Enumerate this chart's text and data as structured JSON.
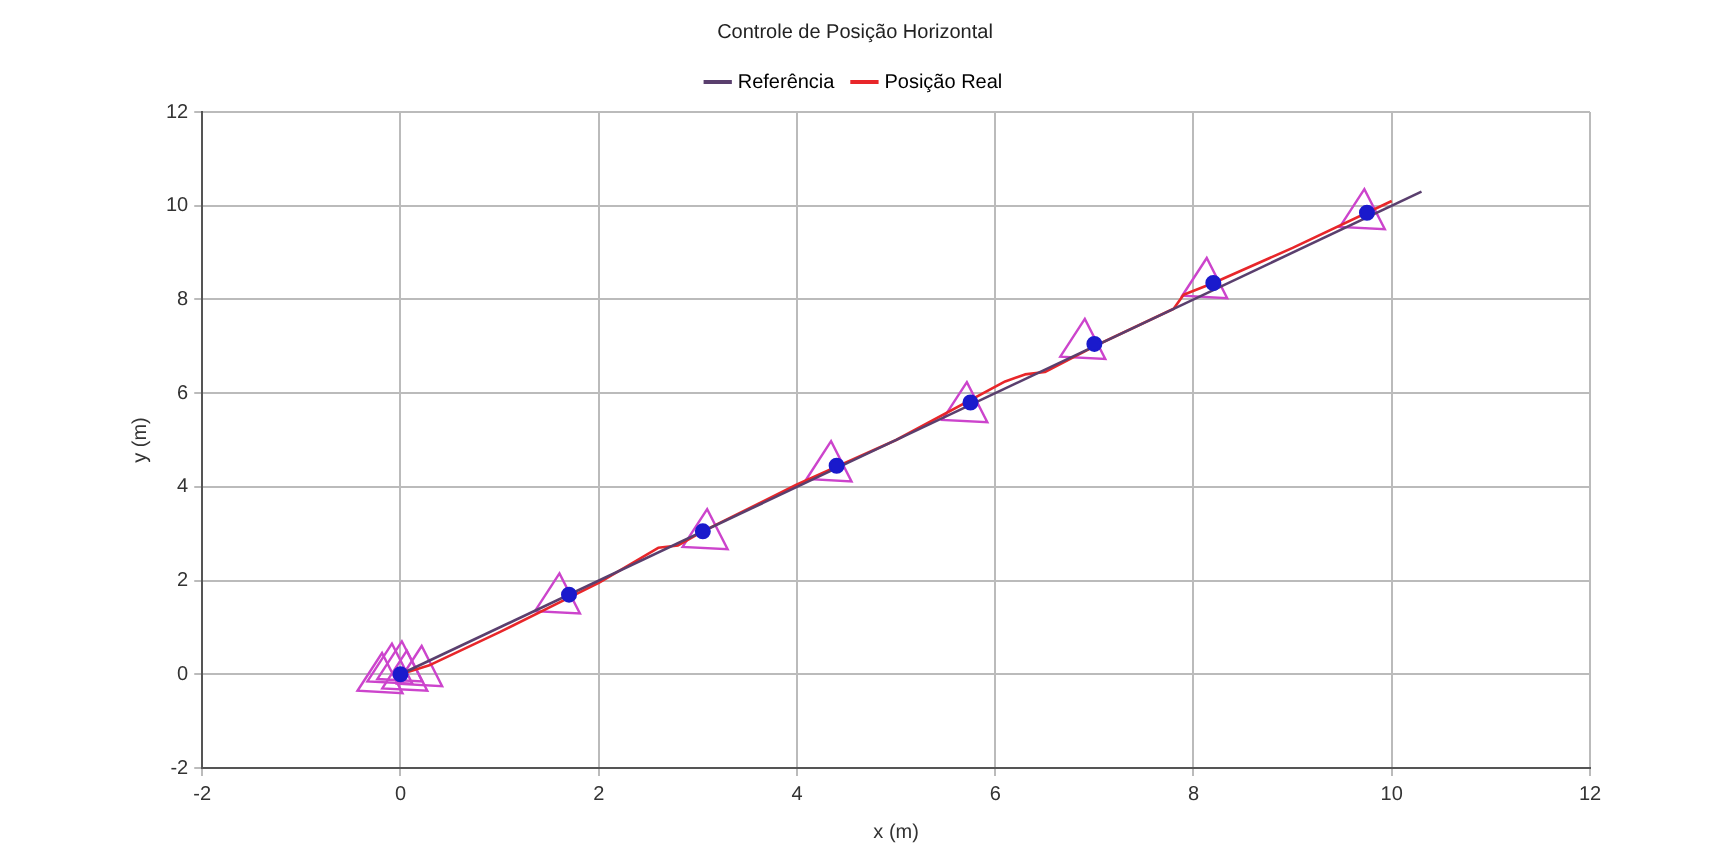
{
  "chart_data": {
    "type": "line",
    "title": "Controle de Posição Horizontal",
    "xlabel": "x (m)",
    "ylabel": "y (m)",
    "xlim": [
      -2,
      12
    ],
    "ylim": [
      -2,
      12
    ],
    "xticks": [
      -2,
      0,
      2,
      4,
      6,
      8,
      10,
      12
    ],
    "yticks": [
      -2,
      0,
      2,
      4,
      6,
      8,
      10,
      12
    ],
    "grid": true,
    "legend": "top",
    "line_style": "solid",
    "series": [
      {
        "name": "Referência",
        "color": "#5a3f6e",
        "type": "line",
        "marker": "none",
        "x": [
          0,
          10.3
        ],
        "values": [
          0,
          10.3
        ]
      },
      {
        "name": "Posição Real",
        "color": "#e8262a",
        "type": "line",
        "marker": "none",
        "x": [
          0,
          0.3,
          1,
          2,
          2.6,
          2.8,
          3.05,
          4,
          5,
          6.1,
          6.3,
          6.5,
          7,
          7.8,
          7.9,
          8.2,
          9,
          10
        ],
        "values": [
          0,
          0.2,
          0.9,
          1.95,
          2.7,
          2.75,
          3.05,
          4.05,
          5,
          6.25,
          6.4,
          6.45,
          7,
          7.8,
          8.1,
          8.35,
          9.1,
          10.1
        ]
      },
      {
        "color": "#1a1acc",
        "type": "scatter",
        "marker": "circle",
        "x": [
          0,
          1.7,
          3.05,
          4.4,
          5.75,
          7,
          8.2,
          9.75
        ],
        "values": [
          0,
          1.7,
          3.05,
          4.45,
          5.8,
          7.05,
          8.35,
          9.85
        ]
      },
      {
        "color": "#cc44cc",
        "type": "scatter",
        "marker": "triangle",
        "x": [
          -0.2,
          -0.1,
          0,
          0.05,
          0.2,
          1.59,
          3.08,
          4.33,
          5.7,
          6.89,
          8.12,
          9.71
        ],
        "values": [
          -0.1,
          0.1,
          0.15,
          -0.05,
          0.05,
          1.6,
          2.97,
          4.42,
          5.68,
          7.03,
          8.33,
          9.8
        ]
      }
    ]
  }
}
